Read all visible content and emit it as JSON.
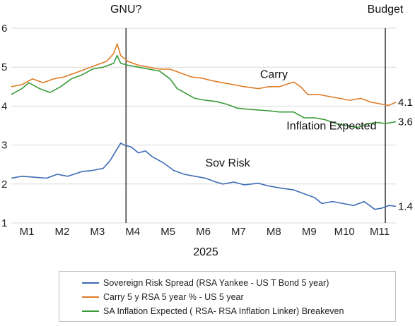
{
  "chart_data": {
    "type": "line",
    "title": "",
    "xlabel": "2025",
    "ylabel": "",
    "ylim": [
      1,
      6
    ],
    "yticks": [
      "1",
      "2",
      "3",
      "4",
      "5",
      "6"
    ],
    "categories": [
      "M1",
      "M2",
      "M3",
      "M4",
      "M5",
      "M6",
      "M7",
      "M8",
      "M9",
      "M10",
      "M11"
    ],
    "x_range": [
      0,
      10.9
    ],
    "grid": true,
    "legend_position": "bottom",
    "series": [
      {
        "name": "Sovereign Risk Spread (RSA Yankee - US T Bond 5 year)",
        "color": "#3d6bb3",
        "x": [
          0,
          0.3,
          0.6,
          1.0,
          1.3,
          1.6,
          2.0,
          2.3,
          2.6,
          2.8,
          3.0,
          3.1,
          3.2,
          3.4,
          3.6,
          3.8,
          4.0,
          4.3,
          4.6,
          4.9,
          5.2,
          5.5,
          5.8,
          6.0,
          6.3,
          6.6,
          7.0,
          7.3,
          7.6,
          8.0,
          8.3,
          8.6,
          8.8,
          9.1,
          9.4,
          9.7,
          10.0,
          10.3,
          10.5,
          10.7,
          10.9
        ],
        "y": [
          2.15,
          2.2,
          2.18,
          2.15,
          2.25,
          2.2,
          2.32,
          2.35,
          2.4,
          2.6,
          2.9,
          3.05,
          3.0,
          2.95,
          2.8,
          2.85,
          2.7,
          2.55,
          2.35,
          2.25,
          2.2,
          2.15,
          2.05,
          2.0,
          2.05,
          1.98,
          2.02,
          1.95,
          1.9,
          1.85,
          1.75,
          1.65,
          1.5,
          1.55,
          1.5,
          1.45,
          1.55,
          1.35,
          1.38,
          1.45,
          1.43
        ],
        "end_label": "1.4"
      },
      {
        "name": "Carry 5 y RSA 5 year % - US 5 year",
        "color": "#e07b26",
        "x": [
          0,
          0.3,
          0.6,
          0.9,
          1.2,
          1.5,
          1.8,
          2.1,
          2.4,
          2.7,
          2.9,
          3.0,
          3.1,
          3.3,
          3.6,
          3.9,
          4.2,
          4.5,
          4.8,
          5.1,
          5.4,
          5.7,
          6.0,
          6.3,
          6.6,
          7.0,
          7.3,
          7.6,
          8.0,
          8.2,
          8.4,
          8.7,
          9.0,
          9.3,
          9.6,
          9.9,
          10.2,
          10.5,
          10.7,
          10.9
        ],
        "y": [
          4.5,
          4.55,
          4.7,
          4.6,
          4.7,
          4.75,
          4.85,
          4.95,
          5.05,
          5.15,
          5.35,
          5.6,
          5.3,
          5.15,
          5.05,
          5.0,
          4.95,
          4.95,
          4.85,
          4.75,
          4.72,
          4.65,
          4.6,
          4.55,
          4.5,
          4.45,
          4.5,
          4.5,
          4.62,
          4.5,
          4.3,
          4.3,
          4.25,
          4.2,
          4.15,
          4.2,
          4.1,
          4.05,
          4.02,
          4.1
        ],
        "end_label": "4.1"
      },
      {
        "name": "SA Inflation Expected ( RSA-  RSA Inflation Linker) Breakeven",
        "color": "#3a9a3a",
        "x": [
          0,
          0.3,
          0.5,
          0.8,
          1.1,
          1.4,
          1.7,
          2.0,
          2.3,
          2.6,
          2.9,
          3.0,
          3.1,
          3.3,
          3.6,
          3.9,
          4.2,
          4.5,
          4.7,
          4.9,
          5.2,
          5.5,
          5.8,
          6.1,
          6.4,
          6.7,
          7.0,
          7.3,
          7.6,
          8.0,
          8.3,
          8.6,
          8.9,
          9.2,
          9.5,
          9.8,
          10.1,
          10.4,
          10.6,
          10.9
        ],
        "y": [
          4.3,
          4.45,
          4.6,
          4.45,
          4.35,
          4.5,
          4.7,
          4.8,
          4.95,
          5.0,
          5.1,
          5.3,
          5.1,
          5.05,
          5.0,
          4.95,
          4.9,
          4.7,
          4.45,
          4.35,
          4.2,
          4.15,
          4.12,
          4.05,
          3.95,
          3.92,
          3.9,
          3.88,
          3.85,
          3.85,
          3.7,
          3.7,
          3.65,
          3.55,
          3.5,
          3.45,
          3.55,
          3.58,
          3.55,
          3.6
        ],
        "end_label": "3.6"
      }
    ],
    "event_lines": [
      {
        "x": 3.25,
        "label": "GNU?"
      },
      {
        "x": 10.6,
        "label": "Budget"
      }
    ],
    "annotations": [
      {
        "text": "Carry",
        "x": 7.05,
        "y": 4.72
      },
      {
        "text": "Inflation Expected",
        "x": 7.8,
        "y": 3.4
      },
      {
        "text": "Sov Risk",
        "x": 5.5,
        "y": 2.45
      }
    ]
  }
}
